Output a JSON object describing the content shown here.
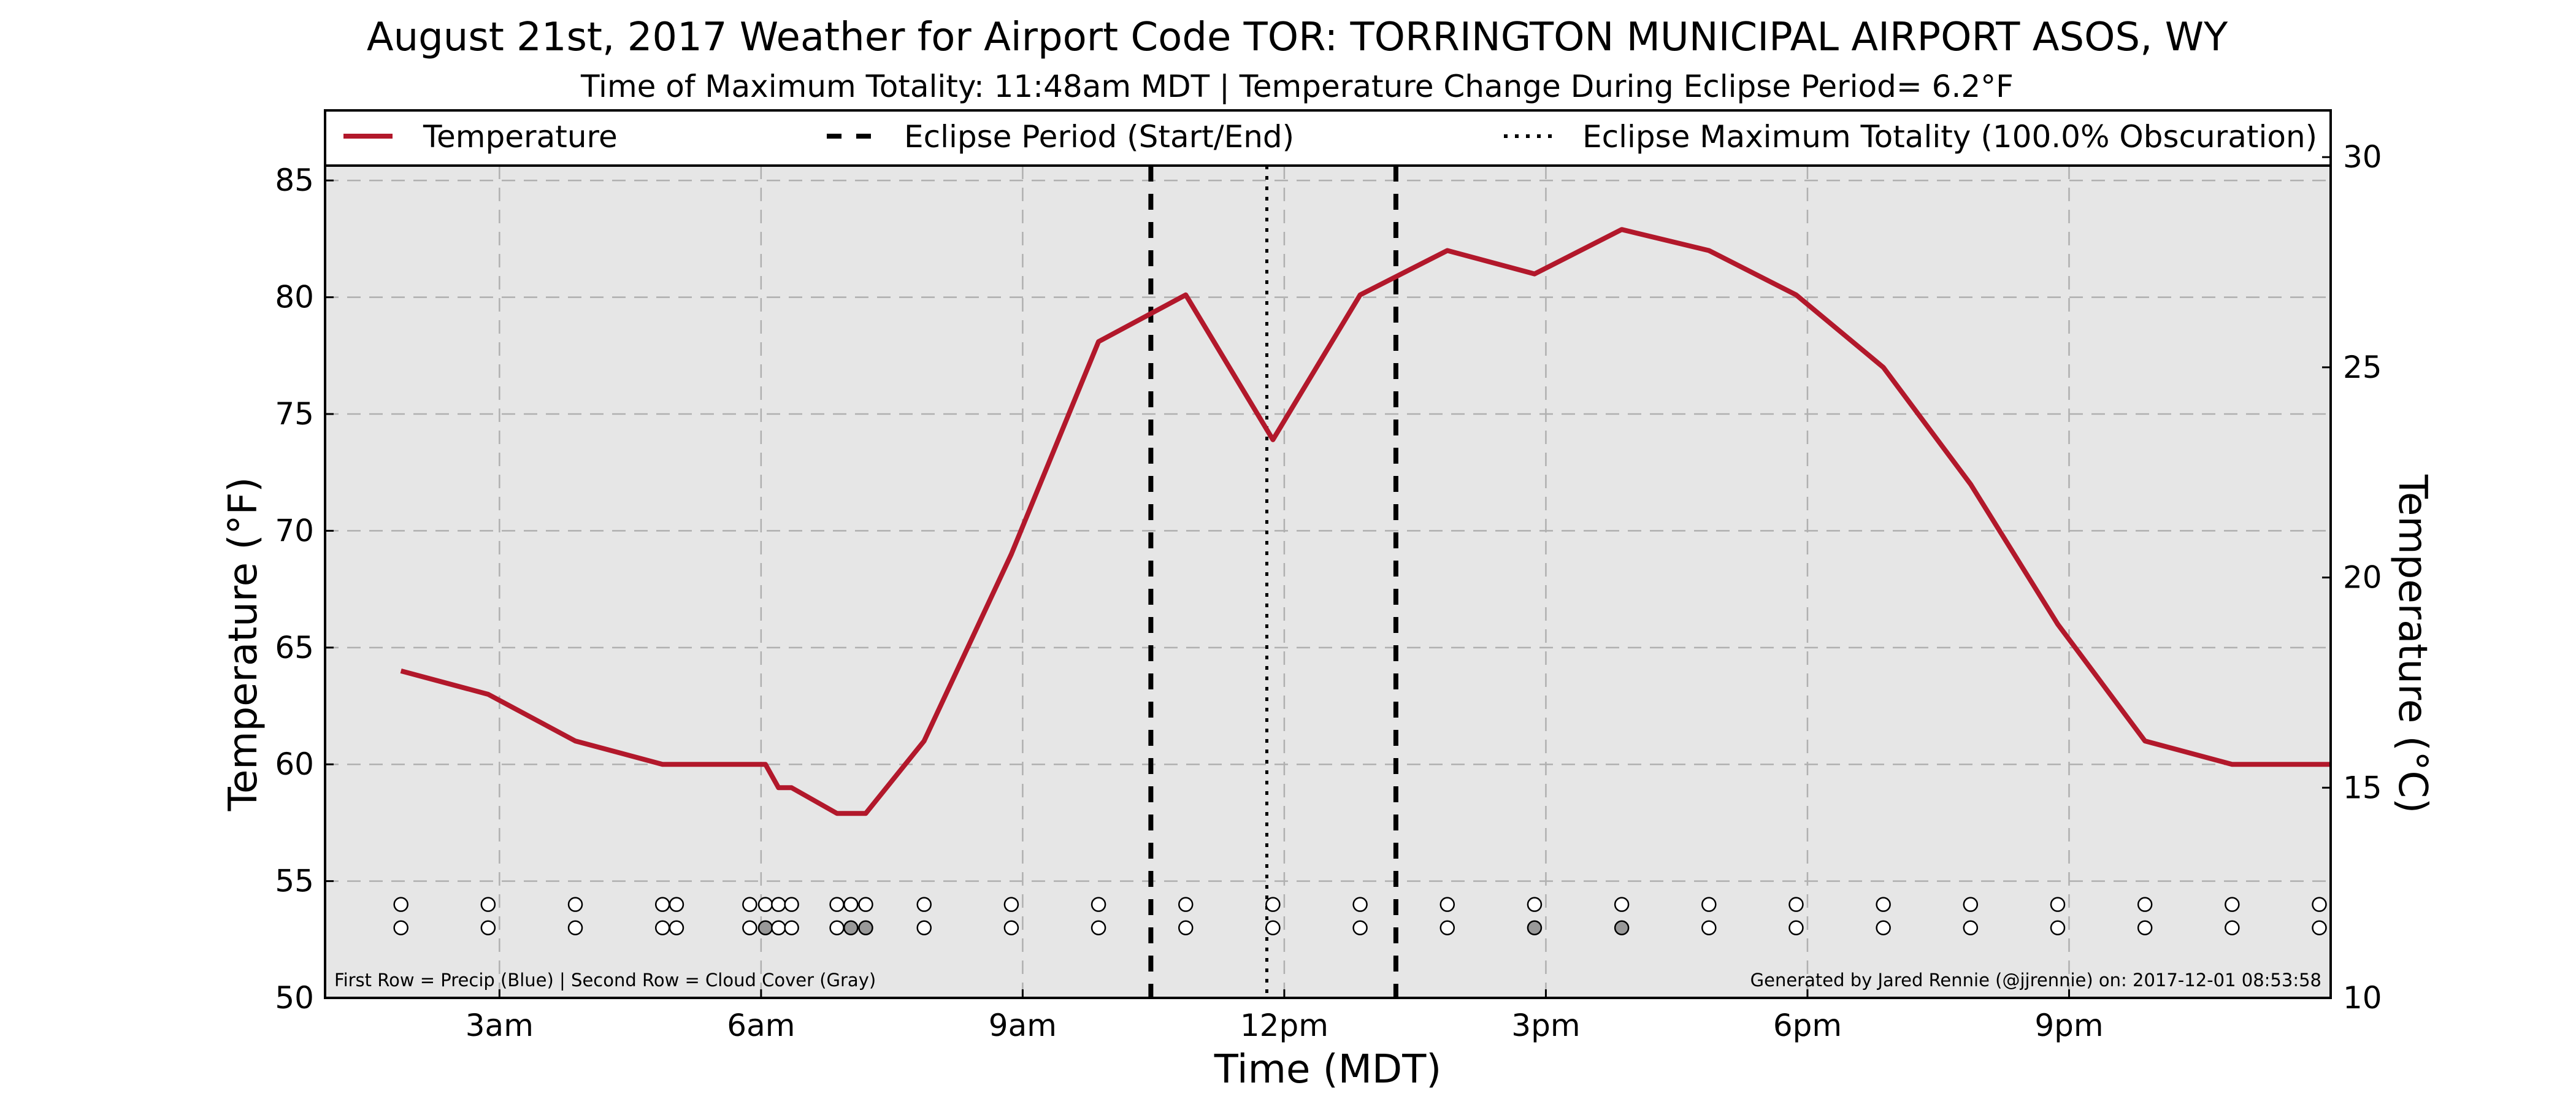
{
  "chart_data": {
    "type": "line",
    "title": "August 21st, 2017 Weather for Airport Code TOR: TORRINGTON MUNICIPAL AIRPORT ASOS, WY",
    "subtitle": "Time of Maximum Totality: 11:48am MDT | Temperature Change During Eclipse Period= 6.2°F",
    "xlabel": "Time (MDT)",
    "ylabel": "Temperature (°F)",
    "ylabel_right": "Temperature (°C)",
    "x_unit": "hours after midnight MDT",
    "xlim": [
      1,
      24
    ],
    "ylim": [
      50,
      88
    ],
    "ylim_right_c": [
      10,
      31.1
    ],
    "x_ticks": [
      {
        "value": 3,
        "label": "3am"
      },
      {
        "value": 6,
        "label": "6am"
      },
      {
        "value": 9,
        "label": "9am"
      },
      {
        "value": 12,
        "label": "12pm"
      },
      {
        "value": 15,
        "label": "3pm"
      },
      {
        "value": 18,
        "label": "6pm"
      },
      {
        "value": 21,
        "label": "9pm"
      }
    ],
    "y_ticks": [
      50,
      55,
      60,
      65,
      70,
      75,
      80,
      85
    ],
    "y_ticks_right": [
      10,
      15,
      20,
      25,
      30
    ],
    "grid": true,
    "series": [
      {
        "name": "Temperature",
        "color": "#b2182b",
        "points": [
          [
            1.87,
            64
          ],
          [
            2.87,
            63
          ],
          [
            3.87,
            61
          ],
          [
            4.87,
            60
          ],
          [
            5.87,
            60
          ],
          [
            6.05,
            60
          ],
          [
            6.2,
            59
          ],
          [
            6.35,
            59
          ],
          [
            6.87,
            57.9
          ],
          [
            7.2,
            57.9
          ],
          [
            7.87,
            61
          ],
          [
            8.87,
            69
          ],
          [
            9.87,
            78.1
          ],
          [
            10.87,
            80.1
          ],
          [
            11.87,
            73.9
          ],
          [
            12.87,
            80.1
          ],
          [
            13.87,
            82
          ],
          [
            14.87,
            81
          ],
          [
            15.87,
            82.9
          ],
          [
            16.87,
            82
          ],
          [
            17.87,
            80.1
          ],
          [
            18.87,
            77
          ],
          [
            19.87,
            72
          ],
          [
            20.87,
            66
          ],
          [
            21.87,
            61
          ],
          [
            22.87,
            60
          ],
          [
            23.87,
            60
          ],
          [
            24,
            60
          ]
        ]
      }
    ],
    "eclipse_lines": [
      {
        "name": "Eclipse Period (Start/End)",
        "style": "dashed",
        "x": [
          10.47,
          13.28
        ]
      },
      {
        "name": "Eclipse Maximum Totality (100.0% Obscuration)",
        "style": "dotted",
        "x": [
          11.8
        ]
      }
    ],
    "legend": {
      "placement": "top",
      "entries": [
        "Temperature",
        "Eclipse Period (Start/End)",
        "Eclipse Maximum Totality (100.0% Obscuration)"
      ]
    },
    "observation_rows": {
      "row_levels_f": [
        54,
        53
      ],
      "precip_times": [
        1.87,
        2.87,
        3.87,
        4.87,
        5.03,
        5.87,
        6.05,
        6.2,
        6.35,
        6.87,
        7.03,
        7.2,
        7.87,
        8.87,
        9.87,
        10.87,
        11.87,
        12.87,
        13.87,
        14.87,
        15.87,
        16.87,
        17.87,
        18.87,
        19.87,
        20.87,
        21.87,
        22.87,
        23.87
      ],
      "precip_colors": [],
      "cloud_times": [
        1.87,
        2.87,
        3.87,
        4.87,
        5.03,
        5.87,
        6.05,
        6.2,
        6.35,
        6.87,
        7.03,
        7.2,
        7.87,
        8.87,
        9.87,
        10.87,
        11.87,
        12.87,
        13.87,
        14.87,
        15.87,
        16.87,
        17.87,
        18.87,
        19.87,
        20.87,
        21.87,
        22.87,
        23.87
      ],
      "cloud_colors": [
        "#ffffff",
        "#ffffff",
        "#ffffff",
        "#ffffff",
        "#ffffff",
        "#ffffff",
        "#999999",
        "#ffffff",
        "#ffffff",
        "#ffffff",
        "#999999",
        "#999999",
        "#ffffff",
        "#ffffff",
        "#ffffff",
        "#ffffff",
        "#ffffff",
        "#ffffff",
        "#ffffff",
        "#999999",
        "#999999",
        "#ffffff",
        "#ffffff",
        "#ffffff",
        "#ffffff",
        "#ffffff",
        "#ffffff",
        "#ffffff",
        "#ffffff"
      ]
    },
    "footnote_left": "First Row = Precip (Blue) | Second Row = Cloud Cover (Gray)",
    "footnote_right": "Generated by Jared Rennie (@jjrennie) on: 2017-12-01 08:53:58"
  }
}
